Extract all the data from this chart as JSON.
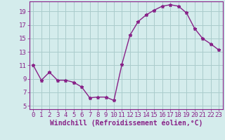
{
  "x": [
    0,
    1,
    2,
    3,
    4,
    5,
    6,
    7,
    8,
    9,
    10,
    11,
    12,
    13,
    14,
    15,
    16,
    17,
    18,
    19,
    20,
    21,
    22,
    23
  ],
  "y": [
    11,
    8.8,
    10,
    8.8,
    8.8,
    8.5,
    7.8,
    6.2,
    6.3,
    6.3,
    5.8,
    11.2,
    15.5,
    17.5,
    18.5,
    19.2,
    19.8,
    20.0,
    19.8,
    18.8,
    16.5,
    15.0,
    14.2,
    13.3
  ],
  "line_color": "#882288",
  "marker": "*",
  "marker_size": 3.5,
  "bg_color": "#d4ecec",
  "grid_color": "#aacccc",
  "xlabel": "Windchill (Refroidissement éolien,°C)",
  "xlabel_fontsize": 7,
  "xlim": [
    -0.5,
    23.5
  ],
  "ylim": [
    4.5,
    20.5
  ],
  "yticks": [
    5,
    7,
    9,
    11,
    13,
    15,
    17,
    19
  ],
  "xticks": [
    0,
    1,
    2,
    3,
    4,
    5,
    6,
    7,
    8,
    9,
    10,
    11,
    12,
    13,
    14,
    15,
    16,
    17,
    18,
    19,
    20,
    21,
    22,
    23
  ],
  "tick_fontsize": 6.5,
  "axis_color": "#882288"
}
